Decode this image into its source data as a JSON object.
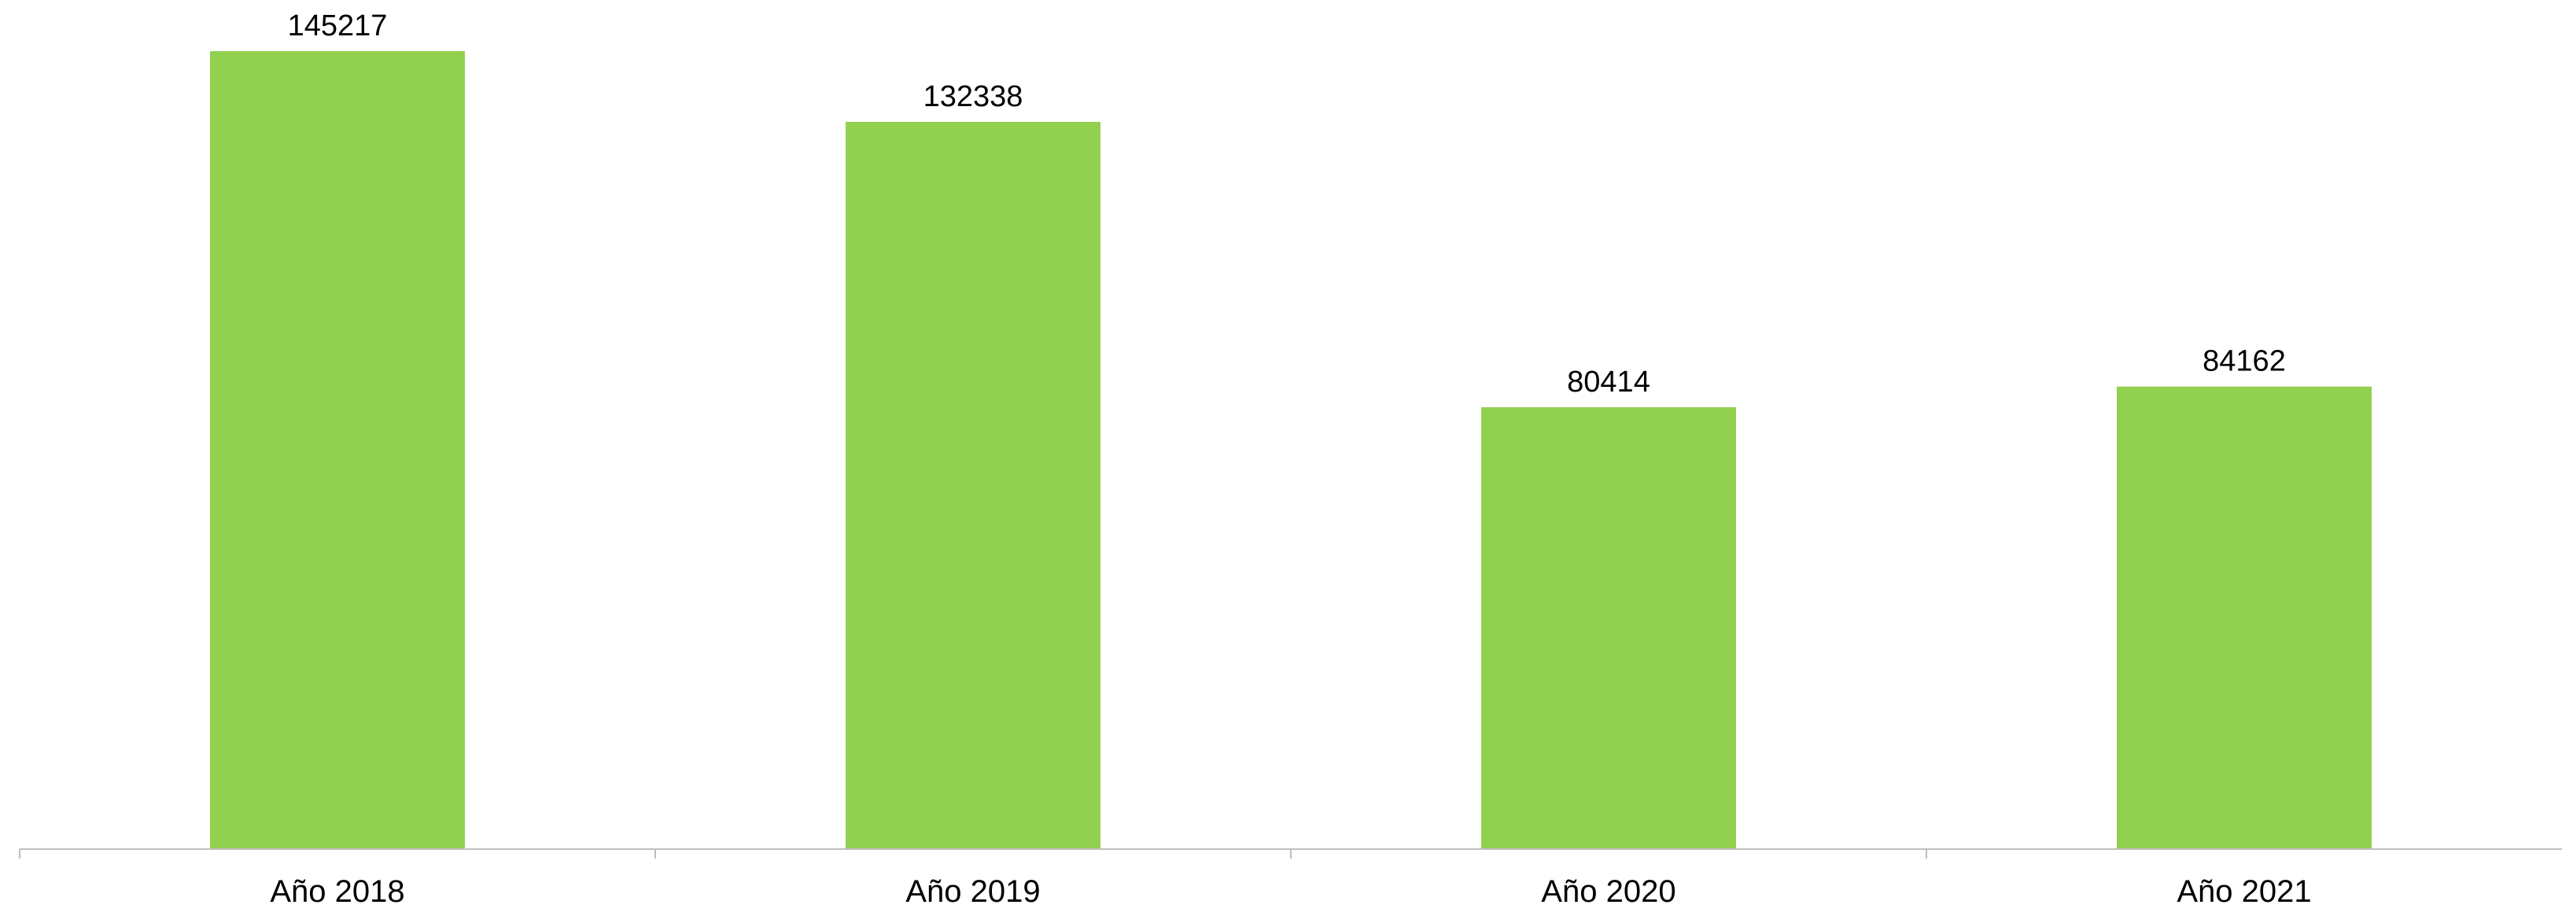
{
  "chart_data": {
    "type": "bar",
    "title": "",
    "xlabel": "",
    "ylabel": "",
    "categories": [
      "Año 2018",
      "Año 2019",
      "Año 2020",
      "Año 2021"
    ],
    "values": [
      145217,
      132338,
      80414,
      84162
    ],
    "data_labels": [
      "145217",
      "132338",
      "80414",
      "84162"
    ],
    "ylim": [
      0,
      145217
    ],
    "grid": false,
    "legend": "none",
    "bar_color": "#92d050",
    "axis_color": "#bfbfbf"
  }
}
